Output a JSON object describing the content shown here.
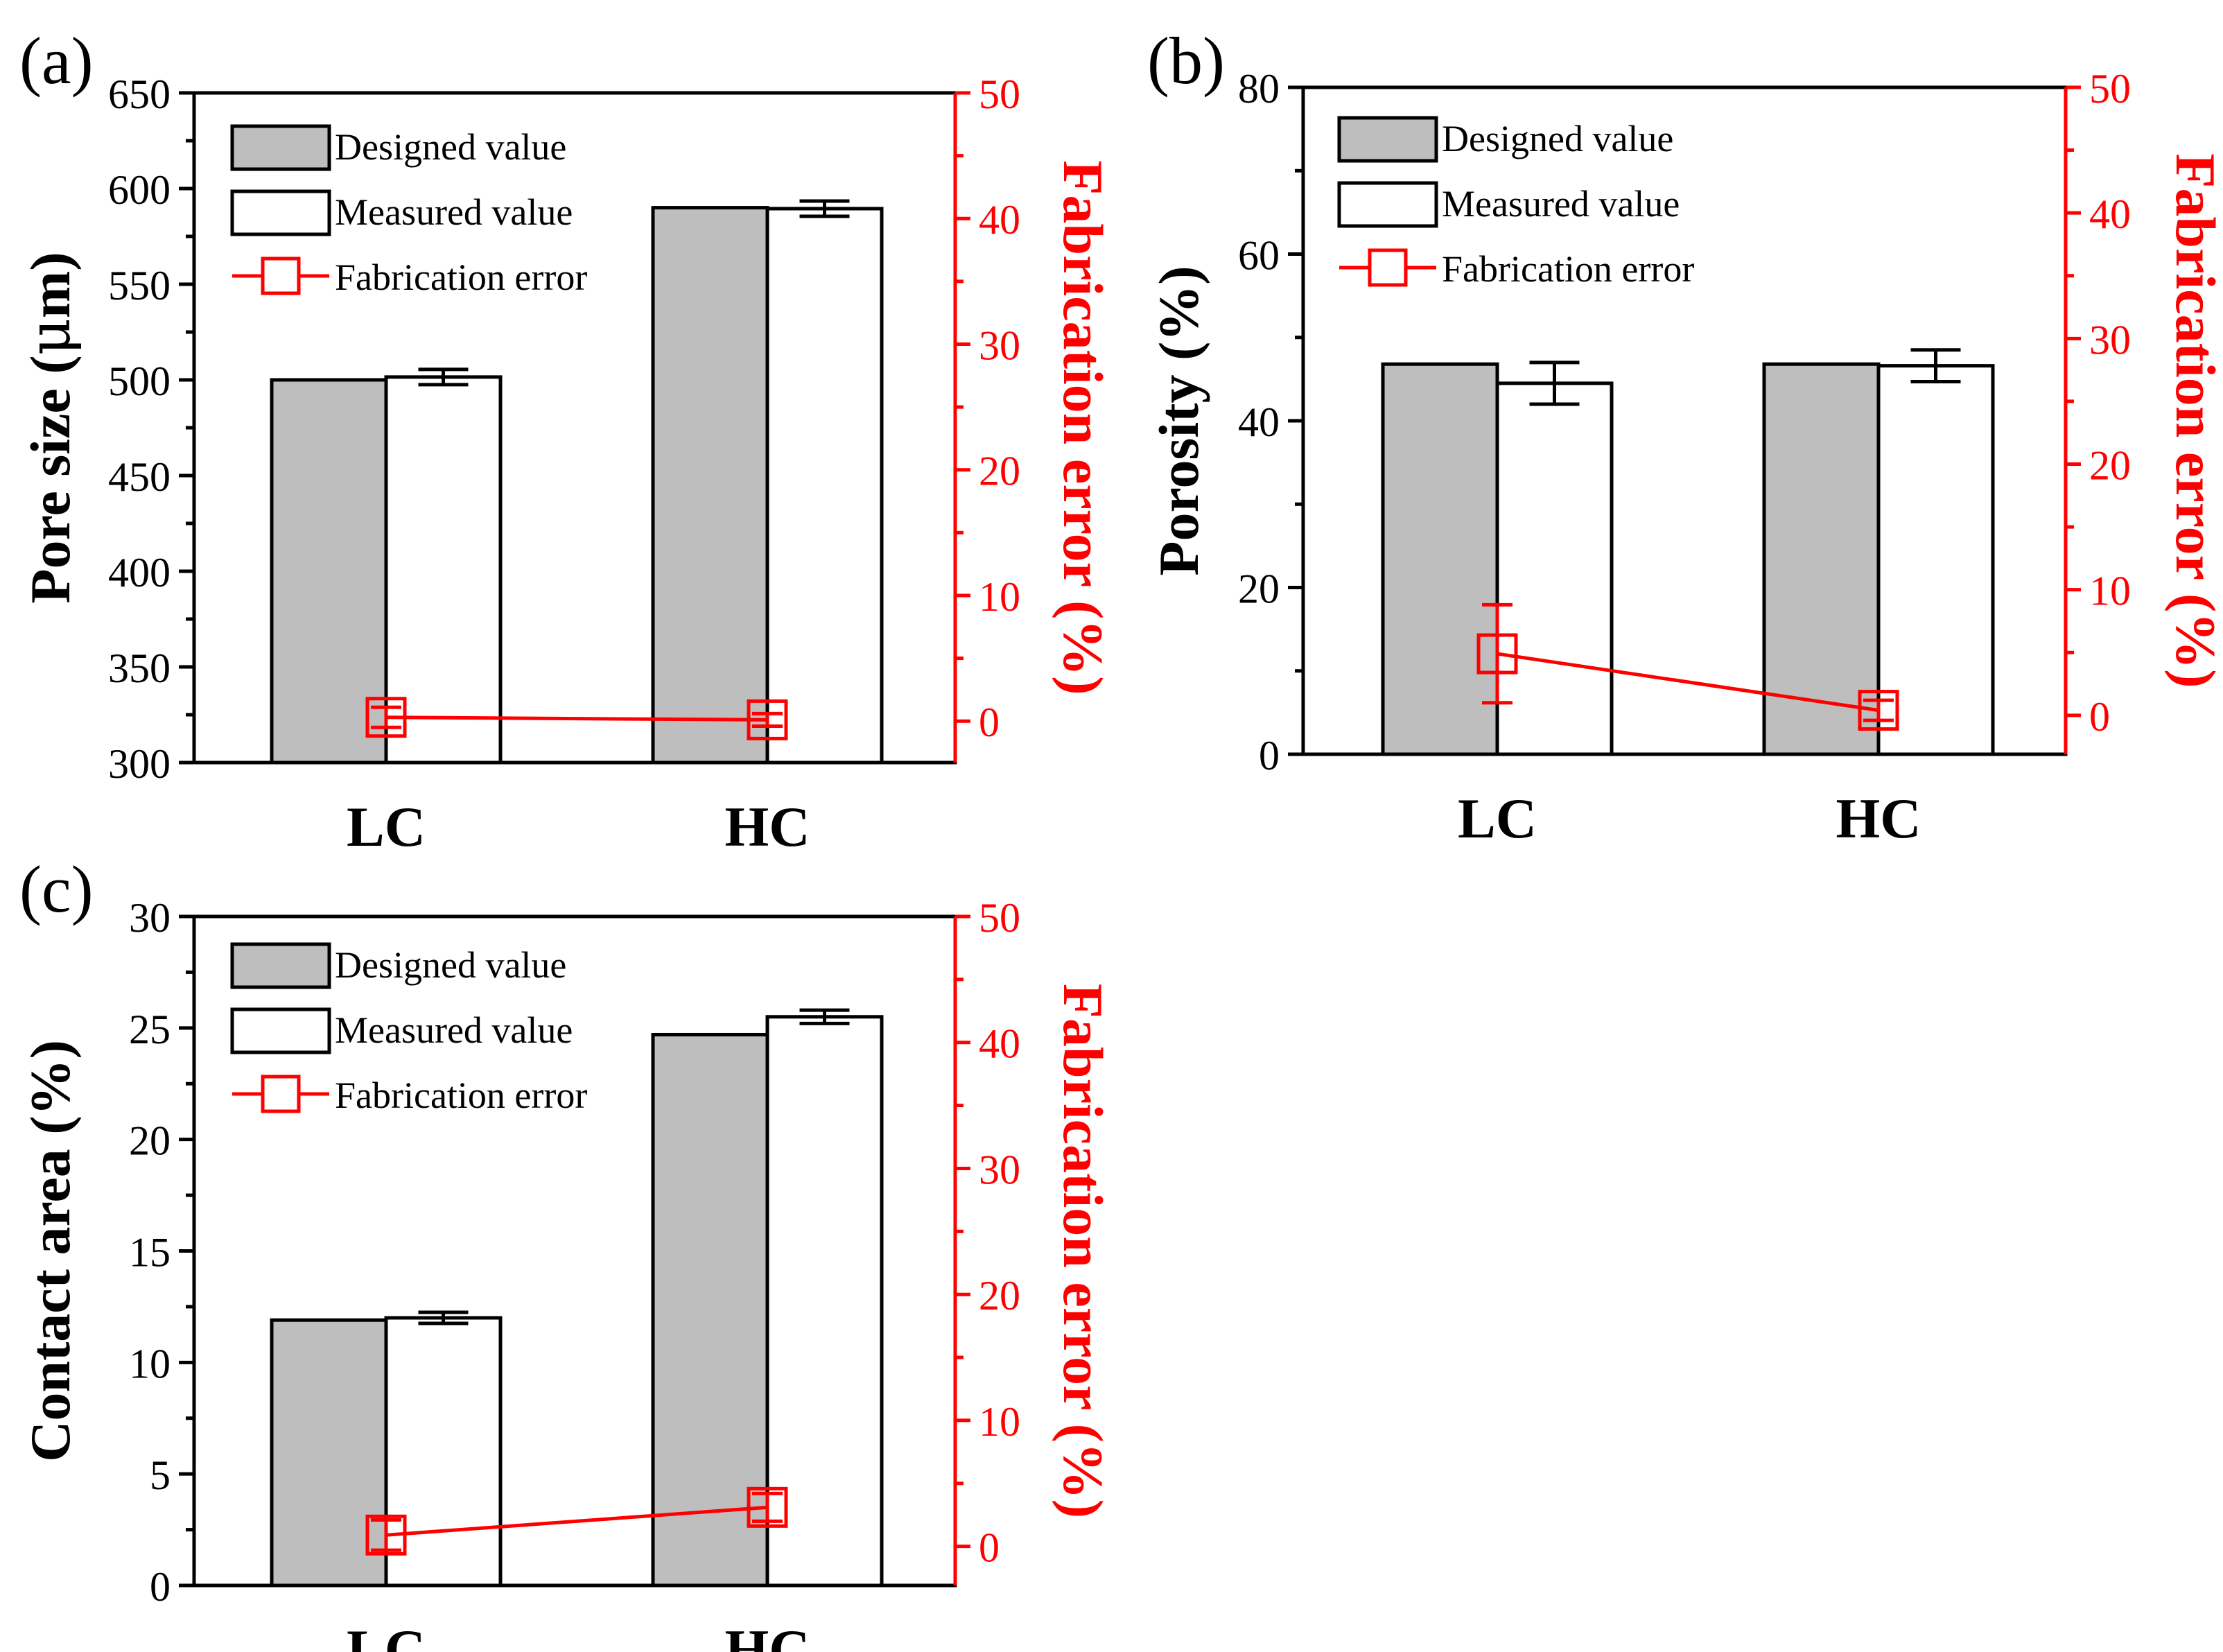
{
  "figure": {
    "colors": {
      "designed_fill": "#bebebe",
      "measured_fill": "#ffffff",
      "axis": "#000000",
      "error": "#ff0000"
    }
  },
  "chart_data": [
    {
      "panel_label": "(a)",
      "type": "bar",
      "categories": [
        "LC",
        "HC"
      ],
      "series": [
        {
          "name": "Designed value",
          "values": [
            500,
            590
          ]
        },
        {
          "name": "Measured value",
          "values": [
            501.5,
            589.5
          ],
          "error": [
            4,
            4
          ]
        }
      ],
      "error_series": {
        "name": "Fabrication error",
        "values": [
          0.3,
          0.1
        ],
        "error": [
          0.8,
          0.5
        ]
      },
      "ylabel_text": "Pore size (",
      "ylabel_symbol": "μ",
      "ylabel_text_end": "m)",
      "y2label": "Fabrication error (%)",
      "ylim": [
        300,
        650
      ],
      "yticks": [
        300,
        350,
        400,
        450,
        500,
        550,
        600,
        650
      ],
      "y2lim": [
        -3.3,
        50
      ],
      "y2ticks": [
        0,
        10,
        20,
        30,
        40,
        50
      ],
      "legend": [
        "Designed value",
        "Measured value",
        "Fabrication error"
      ],
      "legend_position": "top-left"
    },
    {
      "panel_label": "(b)",
      "type": "bar",
      "categories": [
        "LC",
        "HC"
      ],
      "series": [
        {
          "name": "Designed value",
          "values": [
            46.8,
            46.8
          ]
        },
        {
          "name": "Measured value",
          "values": [
            44.5,
            46.6
          ],
          "error": [
            2.5,
            1.9
          ]
        }
      ],
      "error_series": {
        "name": "Fabrication error",
        "values": [
          4.9,
          0.4
        ],
        "error": [
          3.9,
          0.8
        ]
      },
      "ylabel": "Porosity (%)",
      "y2label": "Fabrication error (%)",
      "ylim": [
        0,
        80
      ],
      "yticks": [
        0,
        20,
        40,
        60,
        80
      ],
      "y2lim": [
        -3.1,
        50
      ],
      "y2ticks": [
        0,
        10,
        20,
        30,
        40,
        50
      ],
      "legend": [
        "Designed value",
        "Measured value",
        "Fabrication error"
      ],
      "legend_position": "top-left"
    },
    {
      "panel_label": "(c)",
      "type": "bar",
      "categories": [
        "LC",
        "HC"
      ],
      "series": [
        {
          "name": "Designed value",
          "values": [
            11.9,
            24.7
          ]
        },
        {
          "name": "Measured value",
          "values": [
            12.0,
            25.5
          ],
          "error": [
            0.25,
            0.3
          ]
        }
      ],
      "error_series": {
        "name": "Fabrication error",
        "values": [
          0.9,
          3.1
        ],
        "error": [
          1.2,
          1.1
        ]
      },
      "ylabel": "Contact area (%)",
      "y2label": "Fabrication error (%)",
      "ylim": [
        0,
        30
      ],
      "yticks": [
        0,
        5,
        10,
        15,
        20,
        25,
        30
      ],
      "y2lim": [
        -3.1,
        50
      ],
      "y2ticks": [
        0,
        10,
        20,
        30,
        40,
        50
      ],
      "legend": [
        "Designed value",
        "Measured value",
        "Fabrication error"
      ],
      "legend_position": "top-left"
    }
  ]
}
